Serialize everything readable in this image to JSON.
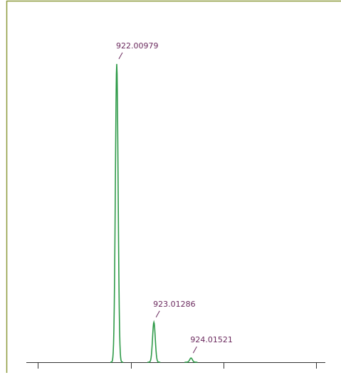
{
  "chart_data": {
    "type": "spectrum",
    "x": [
      922.00979,
      923.01286,
      924.01521
    ],
    "values": [
      100,
      13.4,
      1.4
    ],
    "color": "#2e9a48",
    "label_color": "#6b2a5e",
    "xlim": [
      919.57,
      927.64
    ],
    "ylim": [
      0,
      110
    ]
  }
}
